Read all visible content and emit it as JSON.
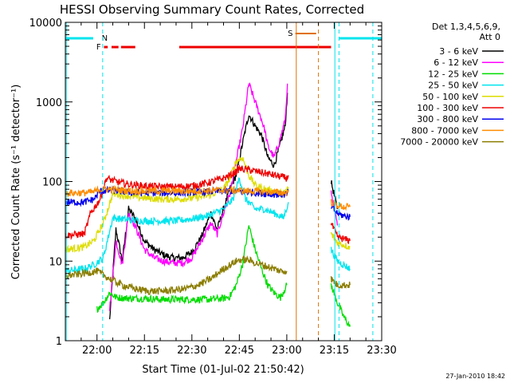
{
  "chart_data": {
    "type": "line",
    "title": "HESSI Observing Summary Count Rates, Corrected",
    "xlabel": "Start Time (01-Jul-02 21:50:42)",
    "ylabel": "Corrected Count Rate (s⁻¹ detector⁻¹)",
    "footer": "27-Jan-2010 18:42",
    "y_scale": "log",
    "ylim": [
      1,
      10000
    ],
    "xlim_minutes_after_2150": [
      0,
      100
    ],
    "x_tick_labels": [
      "22:00",
      "22:15",
      "22:30",
      "22:45",
      "23:00",
      "23:15",
      "23:30"
    ],
    "x_ticks_minutes": [
      10,
      25,
      40,
      55,
      70,
      85,
      100
    ],
    "y_tick_labels": [
      "1",
      "10",
      "100",
      "1000",
      "10000"
    ],
    "y_ticks": [
      1,
      10,
      100,
      1000,
      10000
    ],
    "legend": {
      "title_lines": [
        "Det 1,3,4,5,6,9,",
        "Att 0"
      ],
      "position": "right"
    },
    "flags": [
      {
        "label": "N",
        "color": "#00e5ee",
        "kind": "night"
      },
      {
        "label": "F",
        "color": "#ee0000",
        "kind": "flare"
      },
      {
        "label": "S",
        "color": "#e07000",
        "kind": "saa"
      }
    ],
    "series": [
      {
        "name": "3 - 6 keV",
        "color": "#000000",
        "x": [
          14,
          16,
          18,
          20,
          22,
          25,
          28,
          31,
          34,
          37,
          40,
          43,
          46,
          48,
          50,
          52,
          54,
          56,
          58,
          60,
          62,
          63,
          64,
          66,
          68,
          69.5,
          70.2,
          84,
          86
        ],
        "y": [
          1.8,
          25,
          10,
          45,
          35,
          18,
          14,
          12,
          11,
          11,
          13,
          20,
          40,
          25,
          45,
          80,
          120,
          300,
          700,
          500,
          380,
          280,
          200,
          160,
          300,
          500,
          1300,
          100,
          45
        ]
      },
      {
        "name": "6 - 12 keV",
        "color": "#ff00ff",
        "x": [
          14,
          16,
          18,
          20,
          22,
          25,
          28,
          31,
          34,
          37,
          40,
          43,
          46,
          48,
          50,
          52,
          54,
          56,
          58,
          60,
          62,
          63,
          64,
          66,
          68,
          69.5,
          70.2,
          84,
          86
        ],
        "y": [
          2.5,
          18,
          9,
          40,
          28,
          14,
          11,
          10,
          9.5,
          9.5,
          11,
          18,
          30,
          22,
          40,
          70,
          180,
          450,
          1700,
          1000,
          600,
          450,
          280,
          200,
          350,
          600,
          1700,
          70,
          28
        ]
      },
      {
        "name": "12 - 25 keV",
        "color": "#00dd00",
        "x": [
          10,
          12,
          14,
          16,
          20,
          25,
          30,
          35,
          40,
          45,
          50,
          52,
          54,
          56,
          58,
          60,
          62,
          64,
          66,
          68,
          70,
          84,
          86,
          88,
          90
        ],
        "y": [
          2.5,
          3,
          4,
          3.5,
          3.4,
          3.4,
          3.3,
          3.3,
          3.3,
          3.3,
          3.4,
          3.6,
          5,
          9,
          28,
          14,
          8,
          5,
          4,
          3.5,
          5,
          5,
          3,
          2,
          1.5
        ]
      },
      {
        "name": "25 - 50 keV",
        "color": "#00e5ee",
        "x": [
          0,
          6,
          9,
          12,
          15,
          20,
          25,
          30,
          35,
          40,
          45,
          50,
          53,
          55,
          57,
          60,
          63,
          66,
          69,
          70.5,
          84,
          86,
          90
        ],
        "y": [
          7.5,
          8,
          9,
          11,
          35,
          33,
          32,
          32,
          32,
          34,
          37,
          45,
          60,
          110,
          60,
          45,
          45,
          40,
          35,
          55,
          14,
          10,
          8
        ]
      },
      {
        "name": "50 - 100 keV",
        "color": "#dddd00",
        "x": [
          0,
          6,
          9,
          12,
          15,
          20,
          25,
          30,
          35,
          40,
          45,
          50,
          52,
          54,
          56,
          58,
          60,
          63,
          66,
          69,
          70.5,
          84,
          86,
          90
        ],
        "y": [
          14,
          15,
          18,
          30,
          70,
          66,
          62,
          60,
          60,
          62,
          66,
          80,
          110,
          180,
          200,
          120,
          90,
          80,
          75,
          70,
          85,
          22,
          17,
          15
        ]
      },
      {
        "name": "100 - 300 keV",
        "color": "#ee0000",
        "x": [
          0,
          6,
          8,
          11,
          13,
          16,
          20,
          25,
          30,
          35,
          40,
          45,
          50,
          53,
          55,
          58,
          62,
          66,
          70,
          70.5,
          84,
          86,
          90
        ],
        "y": [
          21,
          22,
          40,
          60,
          110,
          100,
          92,
          88,
          86,
          86,
          88,
          96,
          110,
          125,
          145,
          140,
          130,
          120,
          110,
          120,
          30,
          20,
          18
        ]
      },
      {
        "name": "300 - 800 keV",
        "color": "#0000ee",
        "x": [
          0,
          6,
          9,
          11,
          14,
          18,
          22,
          28,
          34,
          40,
          46,
          52,
          58,
          64,
          70,
          70.5,
          84,
          86,
          88,
          90
        ],
        "y": [
          55,
          55,
          60,
          75,
          78,
          75,
          72,
          72,
          72,
          73,
          75,
          76,
          74,
          70,
          68,
          75,
          48,
          40,
          37,
          36
        ]
      },
      {
        "name": "800 - 7000 keV",
        "color": "#ff8c00",
        "x": [
          0,
          6,
          9,
          11,
          14,
          18,
          22,
          28,
          34,
          40,
          46,
          52,
          58,
          64,
          70,
          70.5,
          84,
          86,
          88,
          90
        ],
        "y": [
          72,
          72,
          74,
          80,
          80,
          78,
          76,
          76,
          76,
          76,
          77,
          78,
          76,
          74,
          72,
          78,
          55,
          50,
          48,
          48
        ]
      },
      {
        "name": "7000 - 20000 keV",
        "color": "#8b7d00",
        "x": [
          0,
          6,
          10,
          14,
          18,
          22,
          26,
          30,
          34,
          38,
          42,
          46,
          50,
          54,
          56,
          58,
          60,
          62,
          64,
          66,
          68,
          70,
          84,
          86,
          90
        ],
        "y": [
          6.5,
          7,
          7.5,
          6,
          5,
          4.5,
          4.2,
          4.2,
          4.3,
          4.5,
          5,
          6,
          8,
          10,
          10.5,
          10.3,
          9.5,
          9,
          8.5,
          8,
          7.5,
          7.5,
          6,
          5,
          5
        ]
      }
    ]
  }
}
